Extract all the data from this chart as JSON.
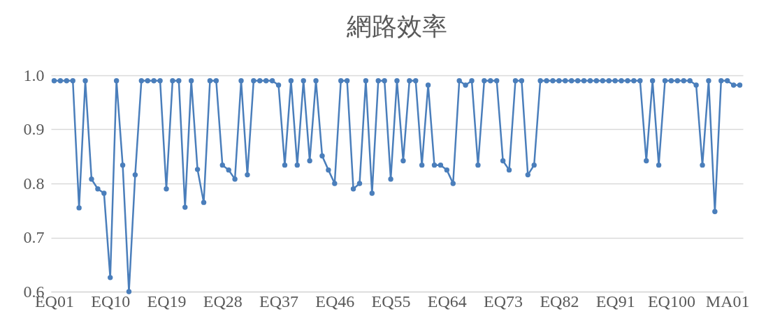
{
  "chart_data": {
    "type": "line",
    "title": "網路效率",
    "categories": [
      "EQ01",
      null,
      null,
      null,
      null,
      null,
      null,
      null,
      null,
      "EQ10",
      null,
      null,
      null,
      null,
      null,
      null,
      null,
      null,
      "EQ19",
      null,
      null,
      null,
      null,
      null,
      null,
      null,
      null,
      "EQ28",
      null,
      null,
      null,
      null,
      null,
      null,
      null,
      null,
      "EQ37",
      null,
      null,
      null,
      null,
      null,
      null,
      null,
      null,
      "EQ46",
      null,
      null,
      null,
      null,
      null,
      null,
      null,
      null,
      "EQ55",
      null,
      null,
      null,
      null,
      null,
      null,
      null,
      null,
      "EQ64",
      null,
      null,
      null,
      null,
      null,
      null,
      null,
      null,
      "EQ73",
      null,
      null,
      null,
      null,
      null,
      null,
      null,
      null,
      "EQ82",
      null,
      null,
      null,
      null,
      null,
      null,
      null,
      null,
      "EQ91",
      null,
      null,
      null,
      null,
      null,
      null,
      null,
      null,
      "EQ100",
      null,
      null,
      null,
      null,
      null,
      null,
      null,
      null,
      "MA01",
      null,
      null
    ],
    "series": [
      {
        "color": "#4a7ebb",
        "values": [
          0.99,
          0.99,
          0.99,
          0.99,
          0.755,
          0.99,
          0.808,
          0.79,
          0.782,
          0.626,
          0.99,
          0.834,
          0.6,
          0.816,
          0.99,
          0.99,
          0.99,
          0.99,
          0.79,
          0.99,
          0.99,
          0.756,
          0.99,
          0.826,
          0.765,
          0.99,
          0.99,
          0.834,
          0.825,
          0.808,
          0.99,
          0.816,
          0.99,
          0.99,
          0.99,
          0.99,
          0.982,
          0.834,
          0.99,
          0.834,
          0.99,
          0.842,
          0.99,
          0.851,
          0.825,
          0.8,
          0.99,
          0.99,
          0.79,
          0.8,
          0.99,
          0.782,
          0.99,
          0.99,
          0.808,
          0.99,
          0.842,
          0.99,
          0.99,
          0.834,
          0.982,
          0.834,
          0.834,
          0.825,
          0.8,
          0.99,
          0.982,
          0.99,
          0.834,
          0.99,
          0.99,
          0.99,
          0.842,
          0.825,
          0.99,
          0.99,
          0.816,
          0.834,
          0.99,
          0.99,
          0.99,
          0.99,
          0.99,
          0.99,
          0.99,
          0.99,
          0.99,
          0.99,
          0.99,
          0.99,
          0.99,
          0.99,
          0.99,
          0.99,
          0.99,
          0.842,
          0.99,
          0.834,
          0.99,
          0.99,
          0.99,
          0.99,
          0.99,
          0.982,
          0.834,
          0.99,
          0.748,
          0.99,
          0.99,
          0.982,
          0.982
        ]
      }
    ],
    "ylim": [
      0.6,
      1.0
    ],
    "yticks": [
      0.6,
      0.7,
      0.8,
      0.9,
      {
        "value": 1.0,
        "label": "1.0"
      }
    ],
    "grid": "y",
    "marker": "circle",
    "line_style": "solid"
  }
}
